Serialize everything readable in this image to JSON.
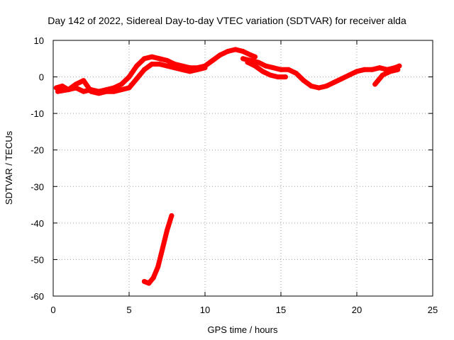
{
  "chart_data": {
    "type": "line",
    "title": "Day 142 of 2022, Sidereal Day-to-day VTEC variation (SDTVAR) for receiver alda",
    "xlabel": "GPS time / hours",
    "ylabel": "SDTVAR / TECUs",
    "xlim": [
      0,
      25
    ],
    "ylim": [
      -60,
      10
    ],
    "xticks": [
      0,
      5,
      10,
      15,
      20,
      25
    ],
    "yticks": [
      10,
      0,
      -10,
      -20,
      -30,
      -40,
      -50,
      -60
    ],
    "grid": true,
    "legend": "none",
    "series_color": "#ff0000",
    "series": [
      {
        "name": "track-1",
        "x": [
          0.2,
          0.6,
          1.0,
          1.5,
          2.0,
          2.5,
          3.0,
          3.5,
          4.0,
          4.5,
          5.0,
          5.5,
          6.0,
          6.5,
          7.0,
          7.5,
          8.0,
          8.5,
          9.0,
          9.5,
          10.0,
          10.5,
          11.0,
          11.5,
          12.0,
          12.5,
          13.0,
          13.3
        ],
        "y": [
          -3,
          -2.5,
          -3.5,
          -3,
          -4,
          -3.5,
          -4,
          -3.5,
          -3,
          -2,
          0,
          3,
          5,
          5.5,
          5,
          4.5,
          3.5,
          3,
          2.5,
          2.5,
          3,
          4.5,
          6,
          7,
          7.5,
          7,
          6,
          5.5
        ]
      },
      {
        "name": "track-2",
        "x": [
          0.3,
          1.0,
          1.5,
          2.0,
          2.5,
          3.0,
          3.5,
          4.0,
          4.5,
          5.0,
          5.5,
          6.0,
          6.5,
          7.0,
          7.5,
          8.0,
          8.5,
          9.0,
          9.5,
          10.0
        ],
        "y": [
          -4,
          -3.5,
          -2,
          -1,
          -4,
          -4.5,
          -4,
          -4,
          -3.5,
          -3,
          -0.5,
          2,
          3.5,
          3.5,
          3,
          2.5,
          2,
          1.5,
          2,
          2.5
        ]
      },
      {
        "name": "track-3",
        "x": [
          12.5,
          13.0,
          13.5,
          14.0,
          14.5,
          15.0,
          15.5,
          16.0,
          16.5,
          17.0,
          17.5,
          18.0,
          18.5,
          19.0,
          19.5,
          20.0,
          20.5,
          21.0,
          21.5,
          22.0,
          22.5,
          22.8
        ],
        "y": [
          5,
          4.5,
          4,
          3,
          2.5,
          2,
          2,
          1,
          -1,
          -2.5,
          -3,
          -2.5,
          -1.5,
          -0.5,
          0.5,
          1.5,
          2,
          2,
          2.5,
          2,
          2.5,
          3
        ]
      },
      {
        "name": "track-4",
        "x": [
          12.8,
          13.3,
          13.8,
          14.3,
          14.8,
          15.3
        ],
        "y": [
          4,
          3,
          1.5,
          0.5,
          0,
          0
        ]
      },
      {
        "name": "track-5",
        "x": [
          21.2,
          21.7,
          22.2,
          22.7
        ],
        "y": [
          -2,
          0.5,
          1.5,
          2
        ]
      },
      {
        "name": "track-6",
        "x": [
          6.0,
          6.3,
          6.6,
          6.9,
          7.2,
          7.5,
          7.8
        ],
        "y": [
          -56,
          -56.5,
          -55,
          -52,
          -47,
          -42,
          -38
        ]
      }
    ]
  }
}
